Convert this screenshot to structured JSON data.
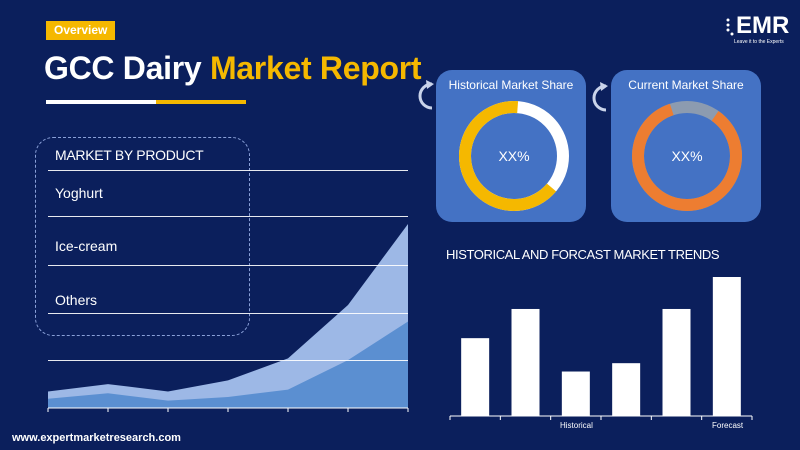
{
  "header": {
    "badge": "Overview",
    "title_main": "GCC Dairy",
    "title_accent": "Market Report"
  },
  "logo": {
    "name": "EMR",
    "tagline": "Leave it to the Experts"
  },
  "product_panel": {
    "heading": "MARKET BY PRODUCT",
    "items": [
      "Yoghurt",
      "Ice-cream",
      "Others"
    ]
  },
  "share_cards": [
    {
      "title": "Historical Market Share",
      "value": "XX%",
      "ring_color": "#f5b800",
      "rest_color": "#ffffff"
    },
    {
      "title": "Current Market Share",
      "value": "XX%",
      "ring_color": "#ed7d31",
      "rest_color": "#8c9bb0"
    }
  ],
  "colors": {
    "background": "#0b1f5c",
    "accent": "#f5b800",
    "card": "#4472c4",
    "area_light": "#9db8e6",
    "area_dark": "#5b8fd1",
    "bar": "#ffffff"
  },
  "chart_data": [
    {
      "type": "area",
      "series": [
        {
          "values": [
            0.09,
            0.13,
            0.09,
            0.15,
            0.27,
            0.56,
            1.0
          ]
        },
        {
          "values": [
            0.05,
            0.08,
            0.04,
            0.06,
            0.1,
            0.26,
            0.47
          ]
        }
      ],
      "ylim": [
        0,
        1
      ]
    },
    {
      "type": "bar",
      "title": "HISTORICAL AND FORCAST MARKET TRENDS",
      "values": [
        0.56,
        0.77,
        0.32,
        0.38,
        0.77,
        1.0
      ],
      "x_labels": [
        "Historical",
        "Forecast"
      ],
      "ylim": [
        0,
        1
      ]
    }
  ],
  "footer": {
    "url": "www.expertmarketresearch.com"
  }
}
